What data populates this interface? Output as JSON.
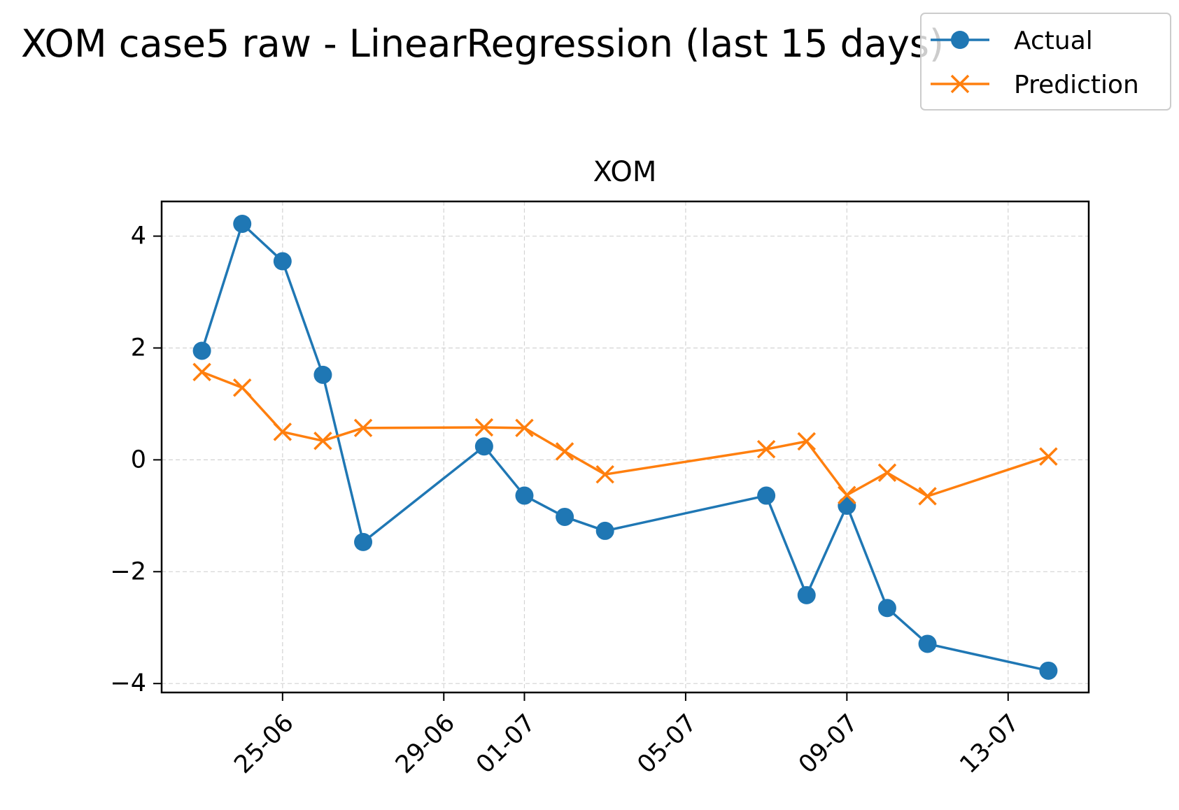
{
  "figure": {
    "suptitle": "XOM case5 raw - LinearRegression (last 15 days)"
  },
  "legend": {
    "placement": "top-right",
    "entries": [
      {
        "label": "Actual",
        "color": "#1f77b4",
        "marker": "circle"
      },
      {
        "label": "Prediction",
        "color": "#ff7f0e",
        "marker": "x"
      }
    ]
  },
  "chart_data": {
    "type": "line",
    "title": "XOM",
    "xlabel": "",
    "ylabel": "",
    "x_type": "date",
    "x": [
      "23-06",
      "24-06",
      "25-06",
      "26-06",
      "27-06",
      "30-06",
      "01-07",
      "02-07",
      "03-07",
      "07-07",
      "08-07",
      "09-07",
      "10-07",
      "11-07",
      "14-07"
    ],
    "series": [
      {
        "name": "Actual",
        "color": "#1f77b4",
        "marker": "circle",
        "values": [
          1.95,
          4.22,
          3.55,
          1.52,
          -1.47,
          0.24,
          -0.64,
          -1.02,
          -1.27,
          -0.64,
          -2.42,
          -0.82,
          -2.65,
          -3.29,
          -3.77
        ]
      },
      {
        "name": "Prediction",
        "color": "#ff7f0e",
        "marker": "x",
        "values": [
          1.57,
          1.29,
          0.5,
          0.34,
          0.57,
          0.58,
          0.57,
          0.15,
          -0.26,
          0.19,
          0.33,
          -0.63,
          -0.23,
          -0.65,
          0.06
        ]
      }
    ],
    "x_ticks": [
      "25-06",
      "29-06",
      "01-07",
      "05-07",
      "09-07",
      "13-07"
    ],
    "y_ticks": [
      4,
      2,
      0,
      -2,
      -4
    ],
    "y_tick_labels": [
      "4",
      "2",
      "0",
      "−2",
      "−4"
    ],
    "xlim": [
      "22-06",
      "15-07"
    ],
    "ylim": [
      -4.16,
      4.62
    ],
    "grid": true
  }
}
